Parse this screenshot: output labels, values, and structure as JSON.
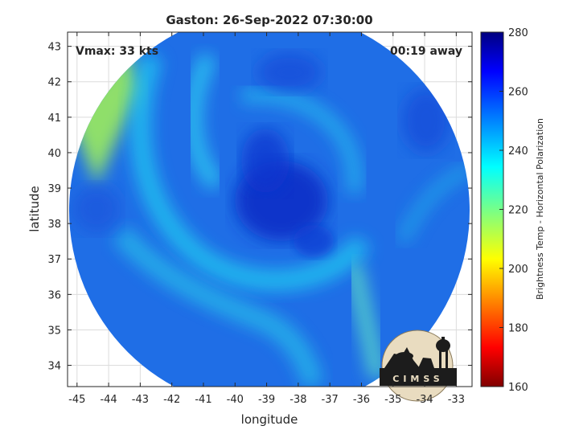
{
  "chart_data": {
    "type": "heatmap",
    "title": "Gaston: 26-Sep-2022 07:30:00",
    "xlabel": "longitude",
    "ylabel": "latitude",
    "xlim": [
      -45.3,
      -32.5
    ],
    "ylim": [
      33.4,
      43.4
    ],
    "xticks": [
      -45,
      -44,
      -43,
      -42,
      -41,
      -40,
      -39,
      -38,
      -37,
      -36,
      -35,
      -34,
      -33
    ],
    "yticks": [
      34,
      35,
      36,
      37,
      38,
      39,
      40,
      41,
      42,
      43
    ],
    "grid": true,
    "annotations": {
      "vmax": "Vmax: 33 kts",
      "time_offset": "00:19 away"
    },
    "colorbar": {
      "label": "Brightness Temp - Horizontal Polarization",
      "colormap": "jet",
      "range": [
        160,
        280
      ],
      "ticks": [
        160,
        180,
        200,
        220,
        240,
        260,
        280
      ]
    },
    "swath": {
      "center_lon": -38.9,
      "center_lat": 38.3,
      "approx_value_range": [
        220,
        270
      ]
    },
    "logo_text": "CIMSS"
  }
}
